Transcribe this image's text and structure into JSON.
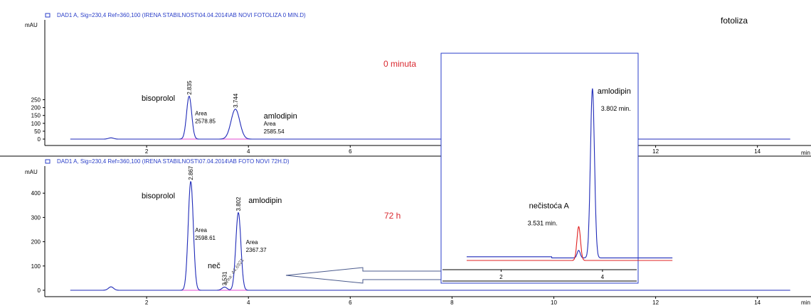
{
  "figure_label": "fotoliza",
  "chart_data": [
    {
      "type": "line",
      "title": "DAD1 A, Sig=230,4 Ref=360,100 (IRENA STABILNOST\\04.04.2014\\AB NOVI FOTOLIZA 0 MIN.D)",
      "ylabel": "mAU",
      "xlabel": "min",
      "xlim": [
        0,
        14.75
      ],
      "ylim": [
        -15,
        290
      ],
      "x_ticks": [
        "2",
        "4",
        "6",
        "8",
        "10",
        "12",
        "14"
      ],
      "y_ticks": [
        "0",
        "50",
        "100",
        "150",
        "200",
        "250"
      ],
      "condition_label": "0 minuta",
      "peaks": [
        {
          "x": 1.3,
          "y": 8,
          "w": 0.05
        },
        {
          "x": 2.835,
          "y": 272,
          "w": 0.05
        },
        {
          "x": 3.744,
          "y": 190,
          "w": 0.085
        }
      ],
      "peak_labels": [
        {
          "rt": "2.835",
          "x": 2.835,
          "y": 272
        },
        {
          "rt": "3.744",
          "x": 3.744,
          "y": 190
        }
      ],
      "compounds": [
        {
          "name": "bisoprolol",
          "x": 1.9,
          "y": 243
        },
        {
          "name": "amlodipin",
          "x": 4.3,
          "y": 130
        }
      ],
      "areas": [
        {
          "label": "Area",
          "value": "2578.85",
          "x": 2.95,
          "y": 150
        },
        {
          "label": "Area",
          "value": "2585.54",
          "x": 4.3,
          "y": 85
        }
      ]
    },
    {
      "type": "line",
      "title": "DAD1 A, Sig=230,4 Ref=360,100 (IRENA STABILNOST\\07.04.2014\\AB FOTO NOVI 72H.D)",
      "ylabel": "mAU",
      "xlabel": "min",
      "xlim": [
        0,
        14.75
      ],
      "ylim": [
        -15,
        460
      ],
      "x_ticks": [
        "2",
        "4",
        "6",
        "8",
        "10",
        "12",
        "14"
      ],
      "y_ticks": [
        "0",
        "100",
        "200",
        "300",
        "400"
      ],
      "condition_label": "72 h",
      "peaks": [
        {
          "x": 1.3,
          "y": 14,
          "w": 0.05
        },
        {
          "x": 2.867,
          "y": 448,
          "w": 0.05
        },
        {
          "x": 3.531,
          "y": 13,
          "w": 0.05
        },
        {
          "x": 3.802,
          "y": 320,
          "w": 0.05
        }
      ],
      "peak_labels": [
        {
          "rt": "2.867",
          "x": 2.867,
          "y": 448
        },
        {
          "rt": "3.531",
          "x": 3.531,
          "y": 13
        },
        {
          "rt": "3.802",
          "x": 3.802,
          "y": 320
        }
      ],
      "compounds": [
        {
          "name": "bisoprolol",
          "x": 1.9,
          "y": 378
        },
        {
          "name": "amlodipin",
          "x": 4.0,
          "y": 360
        },
        {
          "name": "neč",
          "x": 3.2,
          "y": 90
        }
      ],
      "areas": [
        {
          "label": "Area",
          "value": "2598.61",
          "x": 2.95,
          "y": 240
        },
        {
          "label": "Area",
          "value": "2367.37",
          "x": 3.95,
          "y": 190
        }
      ],
      "minor_annotation": {
        "area_label": "Area:",
        "area_value": "44.6921",
        "x": 3.56,
        "y": 20
      }
    },
    {
      "type": "line",
      "title": "",
      "xlim": [
        1.3,
        5.4
      ],
      "ylim": [
        -5,
        100
      ],
      "x_ticks": [
        "2",
        "4"
      ],
      "series": [
        {
          "color": "#1f2ab8",
          "peaks": [
            {
              "x": 3.53,
              "y": 4,
              "w": 0.03
            },
            {
              "x": 3.802,
              "y": 90,
              "w": 0.04
            }
          ]
        },
        {
          "color": "#e02020",
          "peaks": [
            {
              "x": 3.531,
              "y": 18,
              "w": 0.035
            }
          ]
        }
      ],
      "compounds": [
        {
          "name": "amlodipin",
          "rt_label": "3.802 min.",
          "x": 3.9,
          "y": 88
        },
        {
          "name": "nečistoća A",
          "rt_label": "3.531 min.",
          "x": 2.55,
          "y": 27
        }
      ]
    }
  ]
}
